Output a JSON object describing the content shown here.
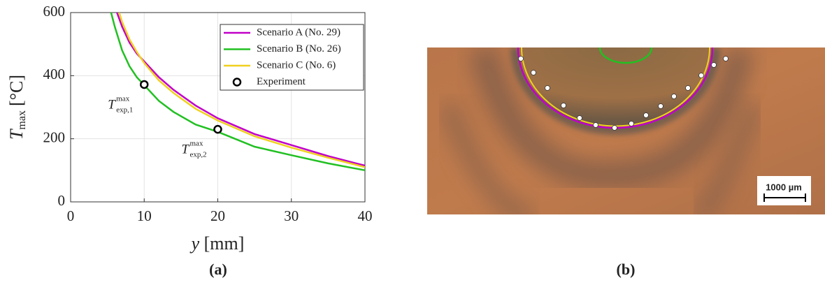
{
  "chart_data": {
    "type": "line",
    "xlabel": {
      "symbol": "y",
      "unit": "[mm]"
    },
    "ylabel": {
      "symbol": "T",
      "subscript": "max",
      "unit": "[°C]"
    },
    "xlim": [
      0,
      40
    ],
    "xticks": [
      0,
      10,
      20,
      30,
      40
    ],
    "ylim": [
      0,
      600
    ],
    "yticks": [
      0,
      200,
      400,
      600
    ],
    "grid": true,
    "legend": "upper right",
    "series": [
      {
        "name": "Scenario A (No. 29)",
        "color": "#c000c8",
        "x": [
          6.3,
          7,
          8,
          9,
          10,
          12,
          14,
          17,
          20,
          25,
          30,
          35,
          40
        ],
        "values": [
          600,
          555,
          505,
          470,
          445,
          395,
          355,
          305,
          265,
          215,
          180,
          145,
          115
        ]
      },
      {
        "name": "Scenario B (No. 26)",
        "color": "#22c022",
        "x": [
          5.5,
          6,
          7,
          8,
          9,
          10,
          12,
          14,
          17,
          20,
          25,
          30,
          35,
          40
        ],
        "values": [
          600,
          555,
          480,
          430,
          395,
          370,
          320,
          285,
          245,
          222,
          175,
          148,
          122,
          100
        ]
      },
      {
        "name": "Scenario C (No. 6)",
        "color": "#f0d020",
        "x": [
          6.6,
          7,
          8,
          9,
          10,
          12,
          14,
          17,
          20,
          25,
          30,
          35,
          40
        ],
        "values": [
          600,
          570,
          515,
          475,
          440,
          385,
          345,
          295,
          258,
          208,
          172,
          140,
          110
        ]
      },
      {
        "name": "Experiment",
        "type": "scatter",
        "color": "#000000",
        "x": [
          10,
          20
        ],
        "values": [
          372,
          230
        ]
      }
    ],
    "annotations": [
      {
        "symbol": "T",
        "superscript": "max",
        "subscript": "exp,1"
      },
      {
        "symbol": "T",
        "superscript": "max",
        "subscript": "exp,2"
      }
    ]
  },
  "micrograph": {
    "scale_bar": "1000 µm"
  },
  "captions": [
    "(a)",
    "(b)"
  ]
}
